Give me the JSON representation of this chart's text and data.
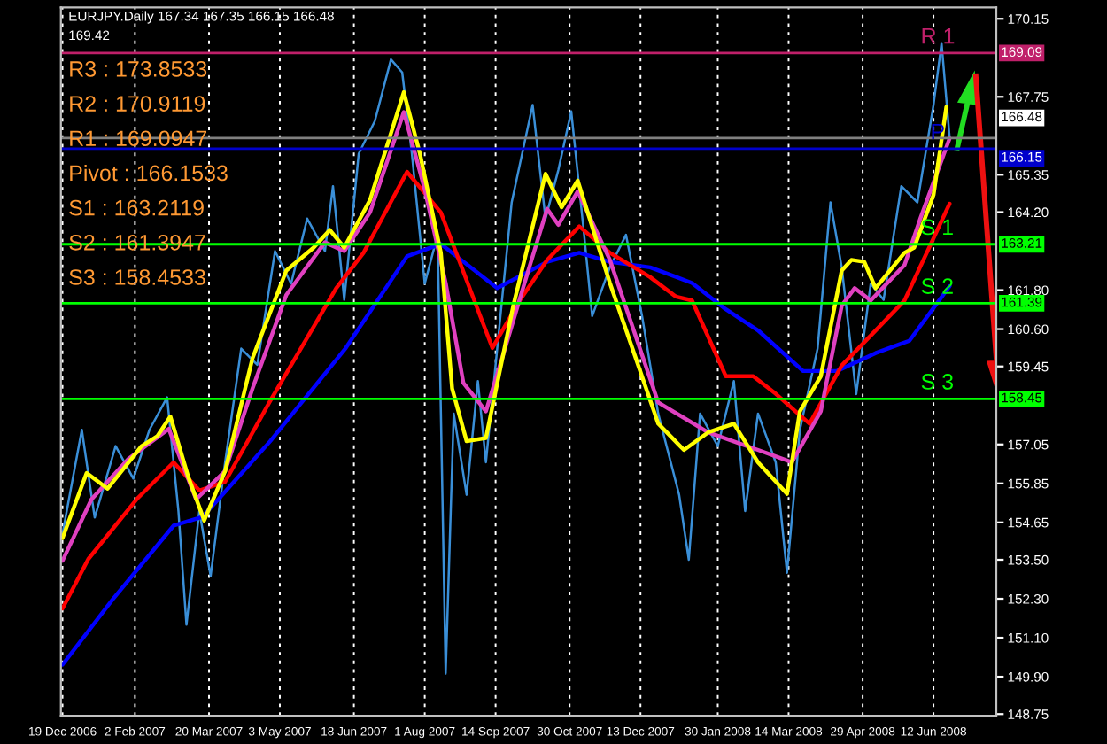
{
  "chart_data": {
    "type": "line",
    "title": "EURJPY.Daily 167.34 167.35 166.15 166.48",
    "subtitle": "169.42",
    "xlim": [
      "2006-12-18",
      "2008-07-21"
    ],
    "xticks": [
      {
        "value": "2006-12-19",
        "label": "19 Dec 2006"
      },
      {
        "value": "2007-02-02",
        "label": "2 Feb 2007"
      },
      {
        "value": "2007-03-20",
        "label": "20 Mar 2007"
      },
      {
        "value": "2007-05-03",
        "label": "3 May 2007"
      },
      {
        "value": "2007-06-18",
        "label": "18 Jun 2007"
      },
      {
        "value": "2007-08-01",
        "label": "1 Aug 2007"
      },
      {
        "value": "2007-09-14",
        "label": "14 Sep 2007"
      },
      {
        "value": "2007-10-30",
        "label": "30 Oct 2007"
      },
      {
        "value": "2007-12-13",
        "label": "13 Dec 2007"
      },
      {
        "value": "2008-01-30",
        "label": "30 Jan 2008"
      },
      {
        "value": "2008-03-14",
        "label": "14 Mar 2008"
      },
      {
        "value": "2008-04-29",
        "label": "29 Apr 2008"
      },
      {
        "value": "2008-06-12",
        "label": "12 Jun 2008"
      }
    ],
    "ylim": [
      148.7,
      170.5
    ],
    "yticks": [
      {
        "value": 170.15,
        "label": "170.15"
      },
      {
        "value": 167.75,
        "label": "167.75"
      },
      {
        "value": 165.35,
        "label": "165.35"
      },
      {
        "value": 164.2,
        "label": "164.20"
      },
      {
        "value": 161.8,
        "label": "161.80"
      },
      {
        "value": 160.6,
        "label": "160.60"
      },
      {
        "value": 159.45,
        "label": "159.45"
      },
      {
        "value": 157.05,
        "label": "157.05"
      },
      {
        "value": 155.85,
        "label": "155.85"
      },
      {
        "value": 154.65,
        "label": "154.65"
      },
      {
        "value": 153.5,
        "label": "153.50"
      },
      {
        "value": 152.3,
        "label": "152.30"
      },
      {
        "value": 151.1,
        "label": "151.10"
      },
      {
        "value": 149.9,
        "label": "149.90"
      },
      {
        "value": 148.75,
        "label": "148.75"
      }
    ],
    "grid": "x",
    "legend": false,
    "series": [
      {
        "color": "#3a8fd8",
        "x": [
          "2006-12-19",
          "2006-12-31",
          "2007-01-08",
          "2007-01-21",
          "2007-02-01",
          "2007-02-11",
          "2007-02-22",
          "2007-03-01",
          "2007-03-06",
          "2007-03-14",
          "2007-03-21",
          "2007-03-30",
          "2007-04-09",
          "2007-04-19",
          "2007-04-30",
          "2007-05-10",
          "2007-05-20",
          "2007-05-31",
          "2007-06-05",
          "2007-06-12",
          "2007-06-21",
          "2007-07-01",
          "2007-07-11",
          "2007-07-18",
          "2007-07-24",
          "2007-08-01",
          "2007-08-09",
          "2007-08-14",
          "2007-08-19",
          "2007-08-27",
          "2007-09-03",
          "2007-09-08",
          "2007-09-17",
          "2007-09-24",
          "2007-10-07",
          "2007-10-15",
          "2007-10-23",
          "2007-10-31",
          "2007-11-08",
          "2007-11-13",
          "2007-11-24",
          "2007-12-04",
          "2007-12-14",
          "2007-12-24",
          "2008-01-06",
          "2008-01-12",
          "2008-01-19",
          "2008-01-30",
          "2008-02-09",
          "2008-02-16",
          "2008-02-24",
          "2008-03-06",
          "2008-03-13",
          "2008-03-21",
          "2008-04-01",
          "2008-04-09",
          "2008-04-16",
          "2008-04-25",
          "2008-05-04",
          "2008-05-12",
          "2008-05-23",
          "2008-06-02",
          "2008-06-12",
          "2008-06-17",
          "2008-06-22"
        ],
        "values": [
          154.3,
          157.5,
          154.8,
          157.0,
          156.0,
          157.5,
          158.5,
          155.0,
          151.5,
          155.0,
          153.0,
          156.5,
          160.0,
          159.5,
          163.0,
          162.0,
          164.0,
          163.0,
          165.0,
          161.5,
          166.0,
          167.0,
          168.9,
          168.5,
          166.0,
          162.0,
          163.5,
          150.0,
          158.0,
          155.5,
          159.0,
          156.5,
          161.0,
          164.5,
          167.5,
          164.0,
          165.5,
          167.3,
          163.5,
          161.0,
          162.5,
          163.5,
          161.0,
          158.0,
          155.5,
          153.5,
          158.0,
          157.0,
          159.0,
          155.0,
          158.0,
          156.5,
          153.1,
          157.5,
          160.0,
          164.5,
          162.5,
          158.6,
          162.0,
          161.5,
          165.0,
          164.5,
          167.5,
          169.4,
          166.5
        ]
      },
      {
        "color": "#0000ff",
        "x": [
          "2006-12-19",
          "2007-01-19",
          "2007-02-26",
          "2007-03-16",
          "2007-04-27",
          "2007-06-13",
          "2007-07-21",
          "2007-08-11",
          "2007-09-15",
          "2007-10-16",
          "2007-11-05",
          "2007-11-24",
          "2007-12-19",
          "2008-01-14",
          "2008-02-04",
          "2008-02-24",
          "2008-03-23",
          "2008-04-13",
          "2008-05-07",
          "2008-05-28",
          "2008-06-22"
        ],
        "values": [
          150.27,
          152.27,
          154.55,
          154.82,
          157.15,
          160.02,
          162.84,
          163.22,
          161.86,
          162.67,
          162.95,
          162.67,
          162.5,
          162.02,
          161.21,
          160.56,
          159.31,
          159.31,
          159.86,
          160.24,
          161.92
        ]
      },
      {
        "color": "#ff0000",
        "x": [
          "2006-12-19",
          "2007-01-04",
          "2007-02-03",
          "2007-02-26",
          "2007-03-14",
          "2007-03-30",
          "2007-04-27",
          "2007-06-07",
          "2007-06-24",
          "2007-07-21",
          "2007-08-11",
          "2007-09-12",
          "2007-09-29",
          "2007-10-16",
          "2007-11-05",
          "2007-11-24",
          "2007-12-19",
          "2008-01-04",
          "2008-01-14",
          "2008-02-04",
          "2008-02-21",
          "2008-03-06",
          "2008-03-27",
          "2008-04-16",
          "2008-05-04",
          "2008-05-25",
          "2008-06-22"
        ],
        "values": [
          152.0,
          153.52,
          155.36,
          156.5,
          155.63,
          155.9,
          158.39,
          161.86,
          162.95,
          165.44,
          164.19,
          160.02,
          161.48,
          162.73,
          163.76,
          162.95,
          162.2,
          161.6,
          161.48,
          159.15,
          159.15,
          158.61,
          157.69,
          159.48,
          160.4,
          161.48,
          164.46
        ]
      },
      {
        "color": "#e040c0",
        "x": [
          "2006-12-19",
          "2007-01-06",
          "2007-01-29",
          "2007-02-23",
          "2007-03-12",
          "2007-03-30",
          "2007-04-16",
          "2007-05-07",
          "2007-05-31",
          "2007-06-12",
          "2007-06-28",
          "2007-07-19",
          "2007-08-01",
          "2007-08-14",
          "2007-08-25",
          "2007-09-08",
          "2007-09-19",
          "2007-10-02",
          "2007-10-16",
          "2007-10-23",
          "2007-11-04",
          "2007-11-24",
          "2007-12-24",
          "2008-01-24",
          "2008-02-24",
          "2008-03-16",
          "2008-04-03",
          "2008-04-16",
          "2008-04-24",
          "2008-05-04",
          "2008-05-25",
          "2008-06-04",
          "2008-06-22"
        ],
        "values": [
          153.47,
          155.36,
          156.61,
          157.53,
          155.36,
          156.23,
          158.77,
          161.65,
          163.27,
          163.0,
          164.19,
          167.28,
          164.9,
          162.02,
          158.94,
          158.07,
          159.86,
          162.02,
          164.3,
          163.81,
          164.84,
          162.73,
          158.34,
          157.42,
          156.88,
          156.5,
          158.07,
          161.32,
          161.86,
          161.48,
          162.57,
          164.03,
          166.47
        ]
      },
      {
        "color": "#ffff00",
        "x": [
          "2006-12-19",
          "2007-01-03",
          "2007-01-16",
          "2007-02-06",
          "2007-02-16",
          "2007-02-24",
          "2007-03-07",
          "2007-03-17",
          "2007-03-30",
          "2007-04-16",
          "2007-05-07",
          "2007-05-24",
          "2007-06-03",
          "2007-06-12",
          "2007-06-28",
          "2007-07-19",
          "2007-07-29",
          "2007-08-11",
          "2007-08-18",
          "2007-08-27",
          "2007-09-08",
          "2007-09-25",
          "2007-10-15",
          "2007-10-25",
          "2007-11-04",
          "2007-11-24",
          "2007-12-09",
          "2007-12-24",
          "2008-01-09",
          "2008-01-24",
          "2008-02-09",
          "2008-02-24",
          "2008-03-13",
          "2008-03-21",
          "2008-04-03",
          "2008-04-16",
          "2008-04-22",
          "2008-04-30",
          "2008-05-07",
          "2008-05-25",
          "2008-05-31",
          "2008-06-12",
          "2008-06-20"
        ],
        "values": [
          154.17,
          156.17,
          155.69,
          156.99,
          157.31,
          157.91,
          156.07,
          154.71,
          156.23,
          159.7,
          162.4,
          163.11,
          163.65,
          163.11,
          164.57,
          167.89,
          166.0,
          162.95,
          158.77,
          157.15,
          157.25,
          161.32,
          165.38,
          164.35,
          165.17,
          162.02,
          159.86,
          157.69,
          156.88,
          157.42,
          157.69,
          156.5,
          155.53,
          158.07,
          159.15,
          162.4,
          162.73,
          162.67,
          161.86,
          162.95,
          163.11,
          164.73,
          167.44
        ]
      }
    ],
    "ref_lines": [
      {
        "axis": "y",
        "value": 169.0947,
        "label": "169.09",
        "color": "#c0206a"
      },
      {
        "axis": "y",
        "value": 166.48,
        "label": "166.48",
        "color": "#808080"
      },
      {
        "axis": "y",
        "value": 166.1533,
        "label": "166.15",
        "color": "#0000cc"
      },
      {
        "axis": "y",
        "value": 163.2119,
        "label": "163.21",
        "color": "#00ff00"
      },
      {
        "axis": "y",
        "value": 161.3947,
        "label": "161.39",
        "color": "#00ff00"
      },
      {
        "axis": "y",
        "value": 158.4533,
        "label": "158.45",
        "color": "#00ff00"
      }
    ],
    "annotations": [
      "R3 : 173.8533",
      "R2 : 170.9119",
      "R1 : 169.0947",
      "Pivot : 166.1533",
      "S1 : 163.2119",
      "S2 : 161.3947",
      "S3 : 158.4533",
      {
        "text": "R 1",
        "x": "2008-06-04",
        "y": 169.0947
      },
      {
        "text": "P",
        "x": "2008-06-10",
        "y": 166.1533
      },
      {
        "text": "S 1",
        "x": "2008-06-04",
        "y": 163.2119
      },
      {
        "text": "S 2",
        "x": "2008-06-04",
        "y": 161.3947
      },
      {
        "text": "S 3",
        "x": "2008-06-04",
        "y": 158.4533
      }
    ]
  }
}
